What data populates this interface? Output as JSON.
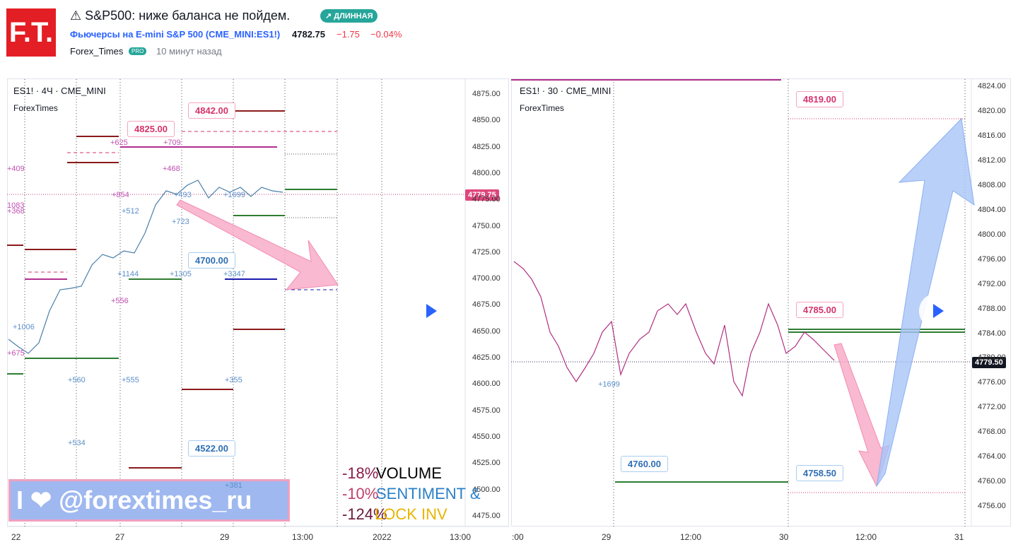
{
  "header": {
    "logo": "F.T.",
    "title": "⚠ S&P500: ниже баланса не пойдем.",
    "badge": "↗ ДЛИННАЯ",
    "instrument": "Фьючерсы на E-mini S&P 500",
    "symbol": "(CME_MINI:ES1!)",
    "price": "4782.75",
    "change": "−1.75",
    "change_pct": "−0.04%",
    "author": "Forex_Times",
    "author_badge": "PRO",
    "time": "10 минут назад"
  },
  "left_chart": {
    "legend": "ES1! · 4Ч · CME_MINI",
    "author": "ForexTimes",
    "y_ticks": [
      "4875.00",
      "4850.00",
      "4825.00",
      "4800.00",
      "4775.00",
      "4750.00",
      "4725.00",
      "4700.00",
      "4675.00",
      "4650.00",
      "4625.00",
      "4600.00",
      "4575.00",
      "4550.00",
      "4525.00",
      "4500.00",
      "4475.00"
    ],
    "x_ticks": [
      "22",
      "27",
      "29",
      "13:00",
      "2022",
      "13:00"
    ],
    "price_tag": "4779.75",
    "callouts": [
      "4842.00",
      "4825.00",
      "4700.00",
      "4522.00"
    ],
    "volume_labels": [
      "+409",
      "+625",
      "+709",
      "+468",
      "+854",
      "+493",
      "+1699",
      "+512",
      "+723",
      "+1144",
      "+1305",
      "+3347",
      "+556",
      "+1006",
      "+675",
      "+560",
      "+555",
      "+355",
      "+534",
      "+381",
      "1083",
      "+368"
    ],
    "overlay": [
      [
        "-18%",
        "VOLUME"
      ],
      [
        "-10%",
        "SENTIMENT &"
      ],
      [
        "-124%",
        "LOCK INV"
      ]
    ],
    "watermark": "I ❤ @forextimes_ru"
  },
  "right_chart": {
    "legend": "ES1! · 30 · CME_MINI",
    "author": "ForexTimes",
    "y_ticks": [
      "4824.00",
      "4820.00",
      "4816.00",
      "4812.00",
      "4808.00",
      "4804.00",
      "4800.00",
      "4796.00",
      "4792.00",
      "4788.00",
      "4784.00",
      "4780.00",
      "4776.00",
      "4772.00",
      "4768.00",
      "4764.00",
      "4760.00",
      "4756.00"
    ],
    "x_ticks": [
      ":00",
      "29",
      "12:00",
      "30",
      "12:00",
      "31"
    ],
    "price_tag": "4779.50",
    "callouts": [
      "4819.00",
      "4785.00",
      "4760.00",
      "4758.50"
    ],
    "volume_label": "+1699"
  }
}
